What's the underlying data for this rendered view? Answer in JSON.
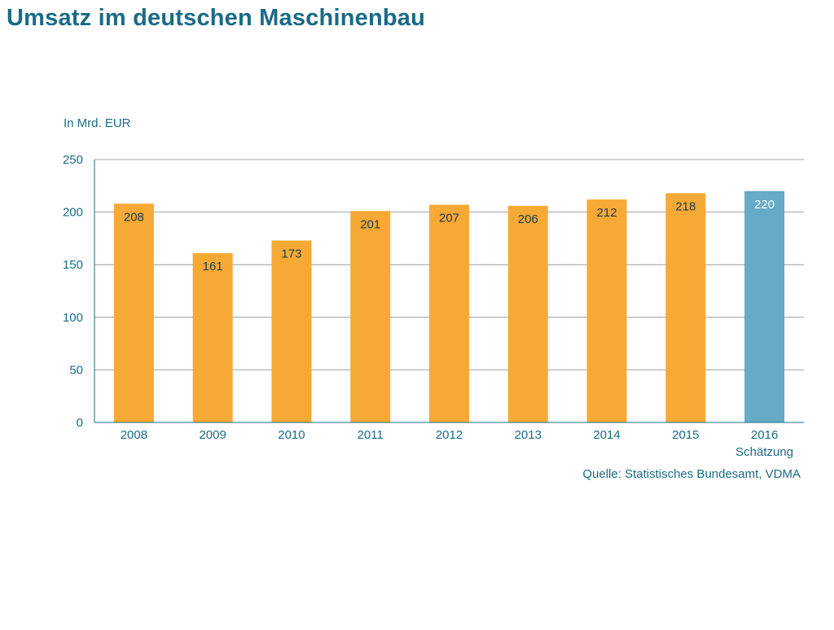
{
  "title": "Umsatz im deutschen Maschinenbau",
  "colors": {
    "accent": "#1a6b86",
    "bar": "#f7a935",
    "highlight": "#66aac7"
  },
  "chart_data": {
    "type": "bar",
    "ylabel": "In Mrd. EUR",
    "ylim": [
      0,
      250
    ],
    "yticks": [
      0,
      50,
      100,
      150,
      200,
      250
    ],
    "grid": true,
    "categories": [
      "2008",
      "2009",
      "2010",
      "2011",
      "2012",
      "2013",
      "2014",
      "2015",
      "2016"
    ],
    "category_sublabels": [
      "",
      "",
      "",
      "",
      "",
      "",
      "",
      "",
      "Schätzung"
    ],
    "values": [
      208,
      161,
      173,
      201,
      207,
      206,
      212,
      218,
      220
    ],
    "highlight_index": 8,
    "source": "Quelle: Statistisches Bundesamt, VDMA"
  }
}
